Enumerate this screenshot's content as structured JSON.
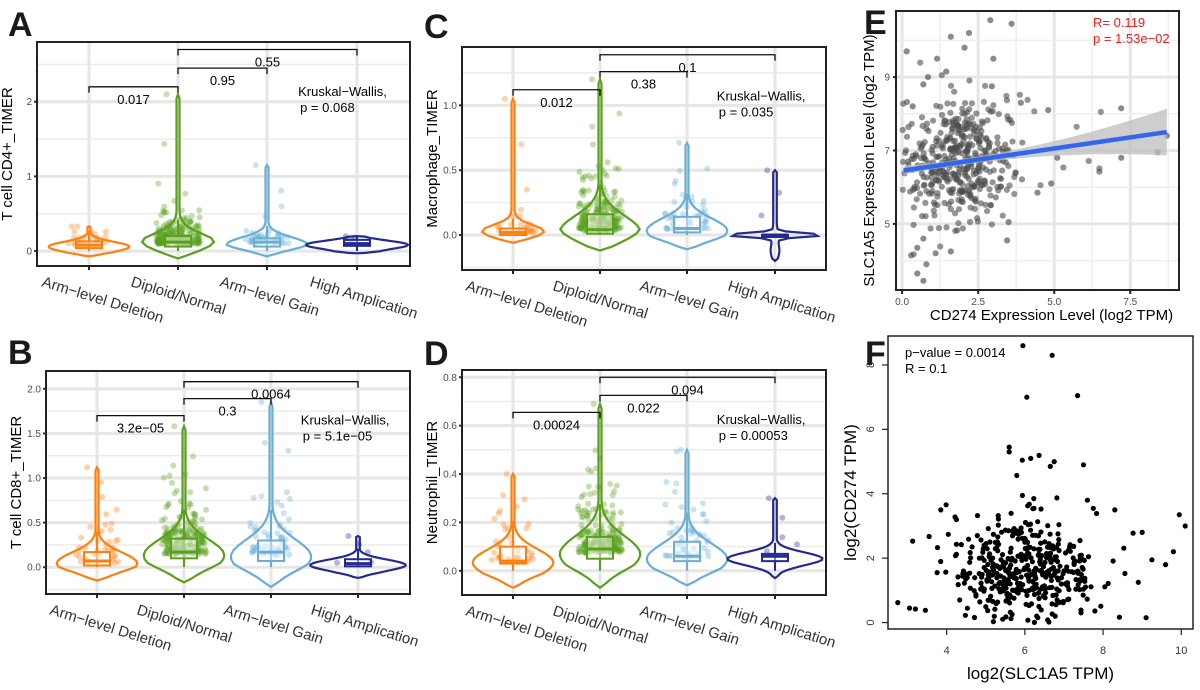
{
  "figure": {
    "panels": [
      "A",
      "B",
      "C",
      "D",
      "E",
      "F"
    ]
  },
  "chart_data": [
    {
      "id": "A",
      "type": "violin",
      "panel_label": "A",
      "ylabel": "T cell CD4+_TIMER",
      "categories": [
        "Arm−level Deletion",
        "Diploid/Normal",
        "Arm−level Gain",
        "High Amplication"
      ],
      "colors": [
        "#ff7f0e",
        "#5aa01c",
        "#6aaed6",
        "#252a8f"
      ],
      "yticks": [
        0,
        1,
        2
      ],
      "ytick_labels": [
        "0",
        "1",
        "2"
      ],
      "ylim": [
        -0.2,
        2.8
      ],
      "grid": true,
      "groups": [
        {
          "median": 0.08,
          "q1": 0.04,
          "q3": 0.13,
          "min": -0.07,
          "max": 0.33,
          "n": 25
        },
        {
          "median": 0.12,
          "q1": 0.06,
          "q3": 0.2,
          "min": -0.1,
          "max": 2.1,
          "n": 220
        },
        {
          "median": 0.12,
          "q1": 0.06,
          "q3": 0.17,
          "min": -0.07,
          "max": 1.15,
          "n": 45
        },
        {
          "median": 0.1,
          "q1": 0.07,
          "q3": 0.15,
          "min": -0.03,
          "max": 0.2,
          "n": 4
        }
      ],
      "comparisons": [
        {
          "from": 0,
          "to": 1,
          "p": "0.017",
          "y": 2.2
        },
        {
          "from": 1,
          "to": 2,
          "p": "0.95",
          "y": 2.45
        },
        {
          "from": 1,
          "to": 3,
          "p": "0.55",
          "y": 2.7
        }
      ],
      "test_label": "Kruskal−Wallis,",
      "test_p": "p = 0.068"
    },
    {
      "id": "B",
      "type": "violin",
      "panel_label": "B",
      "ylabel": "T cell CD8+_TIMER",
      "categories": [
        "Arm−level Deletion",
        "Diploid/Normal",
        "Arm−level Gain",
        "High Amplication"
      ],
      "colors": [
        "#ff7f0e",
        "#5aa01c",
        "#6aaed6",
        "#252a8f"
      ],
      "yticks": [
        0,
        0.5,
        1.0,
        1.5,
        2.0
      ],
      "ytick_labels": [
        "0.0",
        "0.5",
        "1.0",
        "1.5",
        "2.0"
      ],
      "ylim": [
        -0.3,
        2.2
      ],
      "grid": true,
      "groups": [
        {
          "median": 0.07,
          "q1": 0.02,
          "q3": 0.17,
          "min": -0.15,
          "max": 1.12,
          "n": 40
        },
        {
          "median": 0.17,
          "q1": 0.1,
          "q3": 0.32,
          "min": -0.17,
          "max": 1.58,
          "n": 220
        },
        {
          "median": 0.17,
          "q1": 0.07,
          "q3": 0.3,
          "min": -0.22,
          "max": 1.85,
          "n": 60
        },
        {
          "median": 0.04,
          "q1": 0.01,
          "q3": 0.09,
          "min": -0.12,
          "max": 0.35,
          "n": 5
        }
      ],
      "comparisons": [
        {
          "from": 0,
          "to": 1,
          "p": "3.2e−05",
          "y": 1.7
        },
        {
          "from": 1,
          "to": 2,
          "p": "0.3",
          "y": 1.89
        },
        {
          "from": 1,
          "to": 3,
          "p": "0.0064",
          "y": 2.08
        }
      ],
      "test_label": "Kruskal−Wallis,",
      "test_p": "p = 5.1e−05"
    },
    {
      "id": "C",
      "type": "violin",
      "panel_label": "C",
      "ylabel": "Macrophage_TIMER",
      "categories": [
        "Arm−level Deletion",
        "Diploid/Normal",
        "Arm−level Gain",
        "High Amplication"
      ],
      "colors": [
        "#ff7f0e",
        "#5aa01c",
        "#6aaed6",
        "#252a8f"
      ],
      "yticks": [
        0,
        0.5,
        1.0
      ],
      "ytick_labels": [
        "0.0",
        "0.5",
        "1.0"
      ],
      "ylim": [
        -0.27,
        1.45
      ],
      "grid": true,
      "groups": [
        {
          "median": 0.02,
          "q1": 0.0,
          "q3": 0.05,
          "min": -0.06,
          "max": 1.05,
          "n": 30
        },
        {
          "median": 0.04,
          "q1": 0.01,
          "q3": 0.16,
          "min": -0.12,
          "max": 1.2,
          "n": 220
        },
        {
          "median": 0.05,
          "q1": 0.02,
          "q3": 0.14,
          "min": -0.11,
          "max": 0.71,
          "n": 45
        },
        {
          "median": 0.0,
          "q1": 0.0,
          "q3": 0.0,
          "min": -0.2,
          "max": 0.5,
          "n": 3
        }
      ],
      "comparisons": [
        {
          "from": 0,
          "to": 1,
          "p": "0.012",
          "y": 1.12
        },
        {
          "from": 1,
          "to": 2,
          "p": "0.38",
          "y": 1.26
        },
        {
          "from": 1,
          "to": 3,
          "p": "0.1",
          "y": 1.39
        }
      ],
      "test_label": "Kruskal−Wallis,",
      "test_p": "p = 0.035"
    },
    {
      "id": "D",
      "type": "violin",
      "panel_label": "D",
      "ylabel": "Neutrophil_TIMER",
      "categories": [
        "Arm−level Deletion",
        "Diploid/Normal",
        "Arm−level Gain",
        "High Amplication"
      ],
      "colors": [
        "#ff7f0e",
        "#5aa01c",
        "#6aaed6",
        "#252a8f"
      ],
      "yticks": [
        0,
        0.2,
        0.4,
        0.6,
        0.8
      ],
      "ytick_labels": [
        "0.0",
        "0.2",
        "0.4",
        "0.6",
        "0.8"
      ],
      "ylim": [
        -0.1,
        0.83
      ],
      "grid": true,
      "groups": [
        {
          "median": 0.04,
          "q1": 0.03,
          "q3": 0.1,
          "min": -0.07,
          "max": 0.4,
          "n": 40
        },
        {
          "median": 0.09,
          "q1": 0.05,
          "q3": 0.14,
          "min": -0.07,
          "max": 0.69,
          "n": 220
        },
        {
          "median": 0.06,
          "q1": 0.04,
          "q3": 0.12,
          "min": -0.06,
          "max": 0.5,
          "n": 55
        },
        {
          "median": 0.06,
          "q1": 0.04,
          "q3": 0.07,
          "min": -0.03,
          "max": 0.3,
          "n": 5
        }
      ],
      "comparisons": [
        {
          "from": 0,
          "to": 1,
          "p": "0.00024",
          "y": 0.655
        },
        {
          "from": 1,
          "to": 2,
          "p": "0.022",
          "y": 0.725
        },
        {
          "from": 1,
          "to": 3,
          "p": "0.094",
          "y": 0.8
        }
      ],
      "test_label": "Kruskal−Wallis,",
      "test_p": "p = 0.00053"
    },
    {
      "id": "E",
      "type": "scatter",
      "panel_label": "E",
      "xlabel": "CD274 Expression Level (log2 TPM)",
      "ylabel": "SLC1A5 Expression Level (log2 TPM)",
      "xticks": [
        0,
        2.5,
        5,
        7.5
      ],
      "xtick_labels": [
        "0.0",
        "2.5",
        "5.0",
        "7.5"
      ],
      "yticks": [
        5,
        7,
        9
      ],
      "ytick_labels": [
        "5",
        "7",
        "9"
      ],
      "xlim": [
        -0.2,
        9.1
      ],
      "ylim": [
        3.2,
        10.8
      ],
      "grid": true,
      "point_color": "#4d4d4d",
      "n_points": 430,
      "cloud": {
        "x_center": 1.8,
        "x_spread": 0.95,
        "y_center": 6.7,
        "y_spread": 0.85
      },
      "outliers": [
        [
          0.15,
          9.7
        ],
        [
          0.35,
          8.2
        ],
        [
          0.7,
          8.8
        ],
        [
          0.85,
          9.0
        ],
        [
          1.15,
          9.5
        ],
        [
          1.45,
          9.15
        ],
        [
          1.6,
          10.1
        ],
        [
          2.05,
          9.8
        ],
        [
          2.2,
          10.2
        ],
        [
          2.9,
          10.55
        ],
        [
          3.0,
          9.5
        ],
        [
          3.6,
          10.45
        ],
        [
          2.95,
          8.75
        ],
        [
          3.9,
          8.3
        ],
        [
          4.8,
          8.1
        ],
        [
          7.2,
          8.15
        ],
        [
          7.2,
          6.8
        ],
        [
          8.4,
          6.95
        ],
        [
          8.7,
          7.4
        ],
        [
          5.1,
          6.8
        ],
        [
          4.9,
          6.1
        ],
        [
          4.45,
          5.85
        ],
        [
          3.45,
          4.55
        ],
        [
          3.5,
          5.05
        ],
        [
          0.5,
          3.65
        ],
        [
          0.7,
          3.45
        ],
        [
          0.8,
          3.9
        ],
        [
          0.5,
          4.35
        ],
        [
          1.1,
          4.2
        ],
        [
          0.7,
          4.6
        ],
        [
          1.6,
          4.25
        ]
      ],
      "fit": {
        "slope": 0.121,
        "intercept": 6.45,
        "x_from": 0.05,
        "x_to": 8.7,
        "color": "#3366ee",
        "band_color": "#bdbdbd"
      },
      "stat_r": "R= 0.119",
      "stat_p": "p = 1.53e−02"
    },
    {
      "id": "F",
      "type": "scatter",
      "panel_label": "F",
      "xlabel": "log2(SLC1A5 TPM)",
      "ylabel": "log2(CD274 TPM)",
      "xticks": [
        4,
        6,
        8,
        10
      ],
      "xtick_labels": [
        "4",
        "6",
        "8",
        "10"
      ],
      "yticks": [
        0,
        2,
        4,
        6,
        8
      ],
      "ytick_labels": [
        "0",
        "2",
        "4",
        "6",
        "8"
      ],
      "xlim": [
        2.5,
        10.3
      ],
      "ylim": [
        -0.2,
        8.9
      ],
      "grid": false,
      "point_color": "#000000",
      "n_points": 430,
      "cloud": {
        "x_center": 6.0,
        "x_spread": 0.9,
        "y_center": 1.65,
        "y_spread": 0.85
      },
      "outliers": [
        [
          5.95,
          8.6
        ],
        [
          6.7,
          8.3
        ],
        [
          6.05,
          7.0
        ],
        [
          7.35,
          7.05
        ],
        [
          5.6,
          5.45
        ],
        [
          5.6,
          5.3
        ],
        [
          6.15,
          5.1
        ],
        [
          6.75,
          5.0
        ],
        [
          7.5,
          4.9
        ],
        [
          6.65,
          4.85
        ],
        [
          3.85,
          3.5
        ],
        [
          8.3,
          3.5
        ],
        [
          9.95,
          3.35
        ],
        [
          10.1,
          3.0
        ],
        [
          9.0,
          2.8
        ],
        [
          9.8,
          2.2
        ],
        [
          9.25,
          1.95
        ],
        [
          9.6,
          1.8
        ],
        [
          8.9,
          1.25
        ],
        [
          9.1,
          0.15
        ],
        [
          2.75,
          0.62
        ],
        [
          3.05,
          0.45
        ],
        [
          3.2,
          0.42
        ],
        [
          4.25,
          3.2
        ],
        [
          7.6,
          3.8
        ],
        [
          7.75,
          3.55
        ]
      ],
      "stat_p": "p−value = 0.0014",
      "stat_r": "R = 0.1"
    }
  ]
}
